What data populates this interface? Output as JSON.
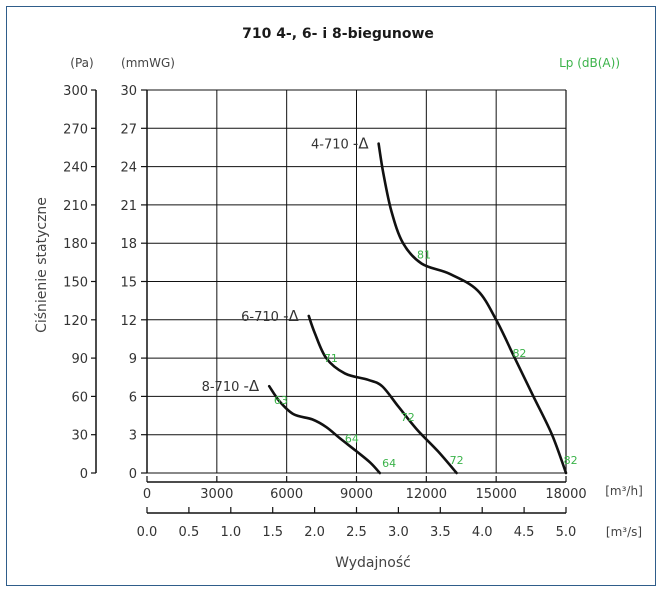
{
  "chart_data": {
    "type": "line",
    "title": "710 4-, 6- i 8-biegunowe",
    "ylabel": "Ciśnienie statyczne",
    "xlabel": "Wydajność",
    "y_unit_pa": "(Pa)",
    "y_unit_mmwg": "(mmWG)",
    "noise_unit": "Lp (dB(A))",
    "x_unit_m3h": "[m³/h]",
    "x_unit_m3s": "[m³/s]",
    "ylim_pa": [
      0,
      300
    ],
    "xlim_m3h": [
      0,
      18000
    ],
    "y_ticks_pa": [
      "0",
      "30",
      "60",
      "90",
      "120",
      "150",
      "180",
      "210",
      "240",
      "270",
      "300"
    ],
    "y_ticks_mmwg": [
      "0",
      "3",
      "6",
      "9",
      "12",
      "15",
      "18",
      "21",
      "24",
      "27",
      "30"
    ],
    "x_ticks_m3h": [
      "0",
      "3000",
      "6000",
      "9000",
      "12000",
      "15000",
      "18000"
    ],
    "x_ticks_m3s": [
      "0.0",
      "0.5",
      "1.0",
      "1.5",
      "2.0",
      "2.5",
      "3.0",
      "3.5",
      "4.0",
      "4.5",
      "5.0"
    ],
    "grid": true,
    "series": [
      {
        "name": "4-710",
        "suffix": "-Δ",
        "points": [
          [
            9950,
            258
          ],
          [
            10150,
            235
          ],
          [
            10500,
            205
          ],
          [
            11000,
            180
          ],
          [
            11800,
            164
          ],
          [
            13000,
            156
          ],
          [
            14200,
            143
          ],
          [
            15000,
            120
          ],
          [
            15800,
            90
          ],
          [
            16600,
            60
          ],
          [
            17400,
            30
          ],
          [
            18000,
            0
          ]
        ],
        "noise": [
          {
            "x": 11900,
            "y": 171,
            "label": "81"
          },
          {
            "x": 16000,
            "y": 94,
            "label": "82"
          },
          {
            "x": 18200,
            "y": 10,
            "label": "82"
          }
        ]
      },
      {
        "name": "6-710",
        "suffix": "-Δ",
        "points": [
          [
            6950,
            123
          ],
          [
            7200,
            110
          ],
          [
            7700,
            90
          ],
          [
            8500,
            78
          ],
          [
            9500,
            73
          ],
          [
            10100,
            68
          ],
          [
            10800,
            52
          ],
          [
            11600,
            34
          ],
          [
            12500,
            17
          ],
          [
            13300,
            0
          ]
        ],
        "noise": [
          {
            "x": 7900,
            "y": 90,
            "label": "71"
          },
          {
            "x": 11200,
            "y": 44,
            "label": "72"
          },
          {
            "x": 13300,
            "y": 10,
            "label": "72"
          }
        ]
      },
      {
        "name": "8-710",
        "suffix": "-Δ",
        "points": [
          [
            5250,
            68
          ],
          [
            5700,
            56
          ],
          [
            6300,
            46
          ],
          [
            7100,
            42
          ],
          [
            7700,
            36
          ],
          [
            8300,
            27
          ],
          [
            9000,
            17
          ],
          [
            9600,
            8
          ],
          [
            10000,
            0
          ]
        ],
        "noise": [
          {
            "x": 5750,
            "y": 57,
            "label": "63"
          },
          {
            "x": 8800,
            "y": 27,
            "label": "64"
          },
          {
            "x": 10400,
            "y": 8,
            "label": "64"
          }
        ]
      }
    ]
  }
}
